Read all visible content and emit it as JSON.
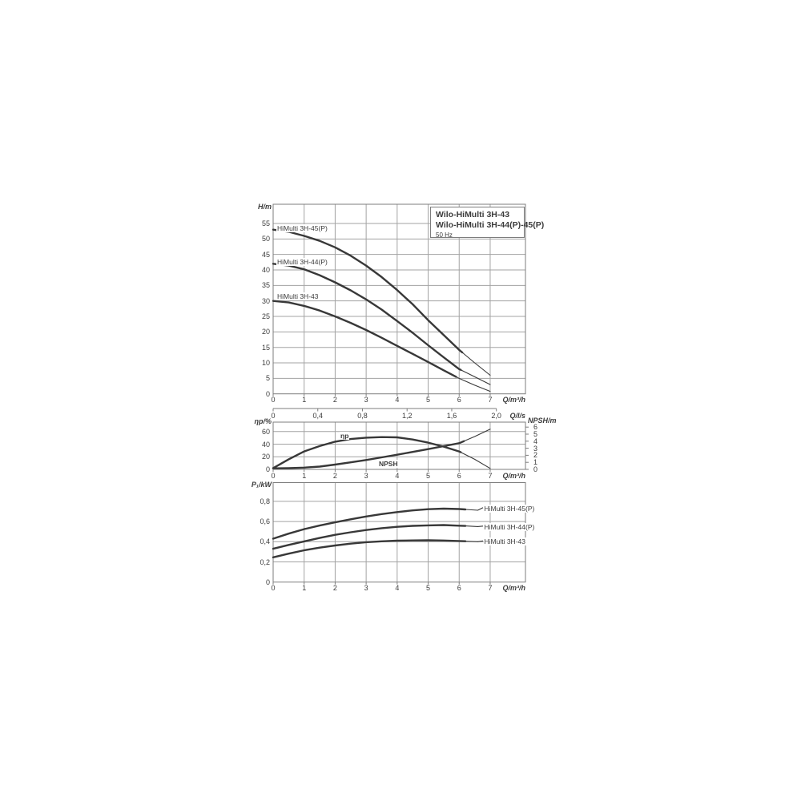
{
  "header": {
    "title_line1": "Wilo-HiMulti 3H-43",
    "title_line2": "Wilo-HiMulti 3H-44(P)-45(P)",
    "subtitle": "50 Hz"
  },
  "colors": {
    "curve": "#383838",
    "grid": "#a3a3a3",
    "border": "#7d7d7d",
    "text": "#3c3c3c"
  },
  "chart_data": [
    {
      "type": "line",
      "name": "head-flow-curves",
      "ylabel": "H/m",
      "xlabel": "Q/m³/h",
      "xlim": [
        0,
        8.14
      ],
      "ylim": [
        0,
        61
      ],
      "grid": true,
      "xticks": [
        "0",
        "1",
        "2",
        "3",
        "4",
        "5",
        "6",
        "7"
      ],
      "yticks": [
        "0",
        "5",
        "10",
        "15",
        "20",
        "25",
        "30",
        "35",
        "40",
        "45",
        "50",
        "55"
      ],
      "ytick_values": [
        0,
        5,
        10,
        15,
        20,
        25,
        30,
        35,
        40,
        45,
        50,
        55
      ],
      "secondary_axis": {
        "label": "Q/l/s",
        "ticks": [
          "0",
          "0,4",
          "0,8",
          "1,2",
          "1,6",
          "2,0"
        ],
        "tick_values_m3h": [
          0,
          1.44,
          2.88,
          4.32,
          5.76,
          7.2
        ]
      },
      "series": [
        {
          "name": "HiMulti 3H-45(P)",
          "thick_until": 6.1,
          "x": [
            0,
            0.5,
            1,
            1.5,
            2,
            2.5,
            3,
            3.5,
            4,
            4.5,
            5,
            5.5,
            6,
            6.5,
            7
          ],
          "y": [
            53,
            52.3,
            51,
            49.4,
            47.3,
            44.6,
            41.4,
            37.7,
            33.5,
            28.9,
            23.8,
            19,
            14.2,
            10,
            6
          ]
        },
        {
          "name": "HiMulti 3H-44(P)",
          "thick_until": 6.05,
          "x": [
            0,
            0.5,
            1,
            1.5,
            2,
            2.5,
            3,
            3.5,
            4,
            4.5,
            5,
            5.5,
            6,
            6.5,
            7
          ],
          "y": [
            42,
            41.4,
            40.2,
            38.3,
            36,
            33.4,
            30.5,
            27.2,
            23.5,
            19.7,
            15.7,
            11.8,
            8,
            5.5,
            3
          ]
        },
        {
          "name": "HiMulti 3H-43",
          "thick_until": 5.9,
          "x": [
            0,
            0.5,
            1,
            1.5,
            2,
            2.5,
            3,
            3.5,
            4,
            4.5,
            5,
            5.5,
            6,
            6.5,
            7
          ],
          "y": [
            30,
            29.5,
            28.4,
            26.9,
            25,
            22.9,
            20.6,
            18.1,
            15.5,
            12.9,
            10.3,
            7.6,
            5,
            2.8,
            0.8
          ]
        }
      ]
    },
    {
      "type": "line",
      "name": "efficiency-npsh-curves",
      "ylabel_left": "ηp/%",
      "ylabel_right": "NPSH/m",
      "xlabel": "Q/m³/h",
      "xlim": [
        0,
        8.14
      ],
      "ylim_left": [
        0,
        75
      ],
      "ylim_right": [
        0,
        6.7
      ],
      "grid": true,
      "xticks": [
        "0",
        "1",
        "2",
        "3",
        "4",
        "5",
        "6",
        "7"
      ],
      "yticks_left": [
        "0",
        "20",
        "40",
        "60"
      ],
      "ytick_values_left": [
        0,
        20,
        40,
        60
      ],
      "yticks_right": [
        "0",
        "1",
        "2",
        "3",
        "4",
        "5",
        "6"
      ],
      "ytick_values_right": [
        0,
        1,
        2,
        3,
        4,
        5,
        6
      ],
      "series": [
        {
          "name": "ηp",
          "axis": "left",
          "thick_until": 6.05,
          "x": [
            0,
            0.5,
            1,
            1.5,
            2,
            2.5,
            3,
            3.5,
            4,
            4.5,
            5,
            5.5,
            6,
            6.5,
            7
          ],
          "y": [
            2,
            16,
            28.5,
            37,
            44,
            48.2,
            50.3,
            51.2,
            50.8,
            47.4,
            42.4,
            36.1,
            28.5,
            16,
            1.5
          ]
        },
        {
          "name": "NPSH",
          "axis": "right",
          "thick_until": 6.15,
          "x": [
            0,
            0.5,
            1,
            1.5,
            2,
            2.5,
            3,
            3.5,
            4,
            4.5,
            5,
            5.5,
            6,
            6.5,
            7
          ],
          "y": [
            0.15,
            0.18,
            0.25,
            0.4,
            0.68,
            1,
            1.33,
            1.7,
            2.08,
            2.48,
            2.88,
            3.3,
            3.72,
            4.66,
            5.7
          ]
        }
      ]
    },
    {
      "type": "line",
      "name": "power-curves",
      "ylabel": "P₁/kW",
      "xlabel": "Q/m³/h",
      "xlim": [
        0,
        8.14
      ],
      "ylim": [
        0,
        0.99
      ],
      "grid": true,
      "xticks": [
        "0",
        "1",
        "2",
        "3",
        "4",
        "5",
        "6",
        "7"
      ],
      "yticks": [
        "0",
        "0,2",
        "0,4",
        "0,6",
        "0,8"
      ],
      "ytick_values": [
        0,
        0.2,
        0.4,
        0.6,
        0.8
      ],
      "series": [
        {
          "name": "HiMulti 3H-45(P)",
          "thick_until": 6.2,
          "x": [
            0,
            0.5,
            1,
            1.5,
            2,
            2.5,
            3,
            3.5,
            4,
            4.5,
            5,
            5.5,
            6,
            6.6
          ],
          "y": [
            0.43,
            0.48,
            0.525,
            0.56,
            0.592,
            0.622,
            0.65,
            0.674,
            0.694,
            0.71,
            0.722,
            0.728,
            0.724,
            0.712
          ]
        },
        {
          "name": "HiMulti 3H-44(P)",
          "thick_until": 6.2,
          "x": [
            0,
            0.5,
            1,
            1.5,
            2,
            2.5,
            3,
            3.5,
            4,
            4.5,
            5,
            5.5,
            6,
            6.6
          ],
          "y": [
            0.33,
            0.368,
            0.403,
            0.437,
            0.468,
            0.494,
            0.516,
            0.534,
            0.548,
            0.557,
            0.562,
            0.565,
            0.559,
            0.55
          ]
        },
        {
          "name": "HiMulti 3H-43",
          "thick_until": 6.2,
          "x": [
            0,
            0.5,
            1,
            1.5,
            2,
            2.5,
            3,
            3.5,
            4,
            4.5,
            5,
            5.5,
            6,
            6.6
          ],
          "y": [
            0.245,
            0.282,
            0.315,
            0.341,
            0.363,
            0.381,
            0.395,
            0.404,
            0.41,
            0.413,
            0.414,
            0.412,
            0.407,
            0.4
          ]
        }
      ]
    }
  ]
}
